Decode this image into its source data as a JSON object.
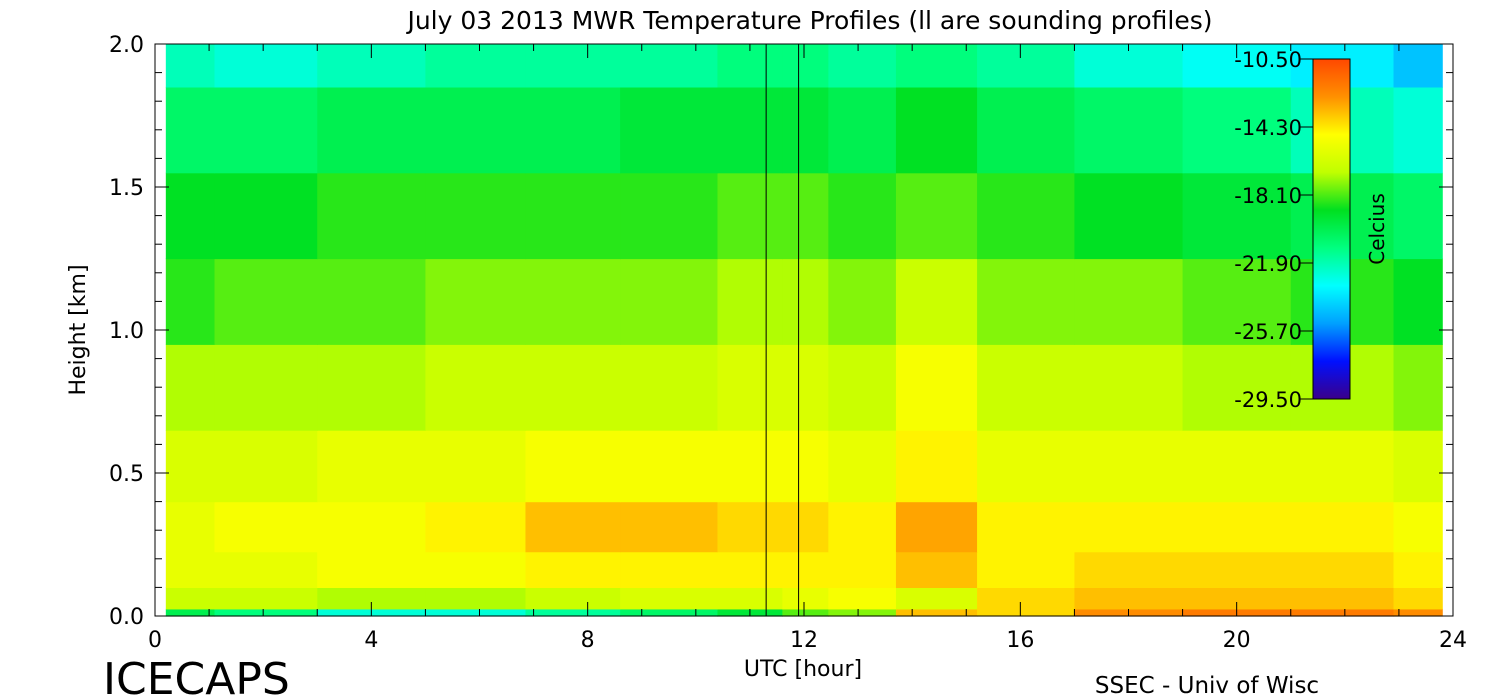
{
  "chart_data": {
    "type": "heatmap",
    "title": "July 03 2013 MWR Temperature Profiles (ll are sounding profiles)",
    "xlabel": "UTC [hour]",
    "ylabel": "Height [km]",
    "xlim": [
      0,
      24
    ],
    "ylim": [
      0,
      2.0
    ],
    "x_ticks": [
      "0",
      "4",
      "8",
      "12",
      "16",
      "20",
      "24"
    ],
    "y_ticks": [
      "0.0",
      "0.5",
      "1.0",
      "1.5",
      "2.0"
    ],
    "sounding_times_utc": [
      11.3,
      11.9
    ],
    "colorbar": {
      "label": "Celcius",
      "ticks": [
        "-10.50",
        "-14.30",
        "-18.10",
        "-21.90",
        "-25.70",
        "-29.50"
      ],
      "min": -29.5,
      "max": -10.5,
      "colors": [
        "#3a008a",
        "#0010ff",
        "#00a0ff",
        "#00ffff",
        "#00ff80",
        "#00e020",
        "#c0ff00",
        "#ffff00",
        "#ff9000",
        "#ff4800"
      ]
    },
    "height_km": [
      0.0,
      0.05,
      0.15,
      0.3,
      0.5,
      0.8,
      1.1,
      1.4,
      1.7,
      2.0
    ],
    "times_utc": [
      0.2,
      2,
      4,
      6,
      7.7,
      9.5,
      11.3,
      11.9,
      13,
      14.4,
      16,
      18,
      20,
      22,
      23.8
    ],
    "temperature_c": [
      [
        -20.0,
        -21.0,
        -22.5,
        -22.5,
        -21.5,
        -20.5,
        -19.5,
        -18.0,
        -17.5,
        -13.5,
        -14.0,
        -12.5,
        -12.0,
        -12.0,
        -12.5
      ],
      [
        -16.5,
        -16.5,
        -17.0,
        -17.0,
        -16.5,
        -16.0,
        -16.0,
        -15.5,
        -15.0,
        -16.0,
        -14.0,
        -13.5,
        -13.5,
        -13.5,
        -14.0
      ],
      [
        -15.5,
        -15.5,
        -15.0,
        -15.0,
        -14.5,
        -14.5,
        -14.5,
        -14.5,
        -14.5,
        -13.5,
        -14.5,
        -14.0,
        -14.0,
        -14.0,
        -14.5
      ],
      [
        -15.5,
        -15.0,
        -15.0,
        -14.5,
        -13.5,
        -13.5,
        -14.0,
        -14.0,
        -14.5,
        -13.0,
        -14.5,
        -14.5,
        -14.5,
        -14.5,
        -15.0
      ],
      [
        -16.0,
        -16.0,
        -15.5,
        -15.5,
        -15.0,
        -15.0,
        -15.0,
        -15.0,
        -15.5,
        -14.5,
        -15.5,
        -15.5,
        -15.5,
        -15.5,
        -16.0
      ],
      [
        -17.0,
        -17.0,
        -17.0,
        -16.5,
        -16.5,
        -16.5,
        -16.0,
        -16.0,
        -16.5,
        -15.0,
        -16.5,
        -16.5,
        -17.0,
        -17.0,
        -17.5
      ],
      [
        -18.5,
        -18.0,
        -18.0,
        -17.5,
        -17.5,
        -17.5,
        -17.0,
        -17.0,
        -17.5,
        -16.5,
        -17.5,
        -17.5,
        -18.0,
        -18.5,
        -19.0
      ],
      [
        -19.0,
        -19.0,
        -18.5,
        -18.5,
        -18.5,
        -18.5,
        -18.0,
        -18.0,
        -18.5,
        -18.0,
        -18.5,
        -19.0,
        -19.5,
        -20.0,
        -20.5
      ],
      [
        -20.5,
        -20.5,
        -20.0,
        -20.0,
        -20.0,
        -19.5,
        -19.5,
        -19.5,
        -20.0,
        -19.0,
        -20.0,
        -20.5,
        -21.0,
        -22.0,
        -22.5
      ],
      [
        -22.0,
        -22.5,
        -22.0,
        -21.5,
        -21.5,
        -21.5,
        -21.0,
        -21.0,
        -21.5,
        -21.0,
        -21.5,
        -22.5,
        -23.0,
        -23.5,
        -24.5
      ]
    ]
  },
  "footer": {
    "brand": "ICECAPS",
    "credit": "SSEC - Univ of Wisc"
  }
}
